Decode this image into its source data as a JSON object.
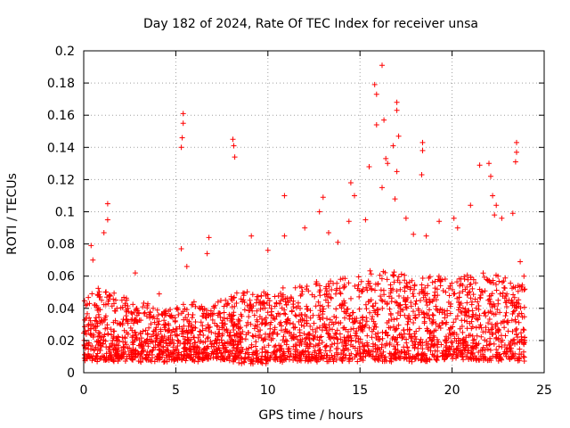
{
  "chart_data": {
    "type": "scatter",
    "title": "Day 182 of 2024, Rate Of TEC Index for receiver unsa",
    "xlabel": "GPS time / hours",
    "ylabel": "ROTI / TECUs",
    "xlim": [
      0,
      25
    ],
    "ylim": [
      0,
      0.2
    ],
    "xticks": [
      0,
      5,
      10,
      15,
      20,
      25
    ],
    "xtick_labels": [
      "0",
      "5",
      "10",
      "15",
      "20",
      "25"
    ],
    "yticks": [
      0,
      0.02,
      0.04,
      0.06,
      0.08,
      0.1,
      0.12,
      0.14,
      0.16,
      0.18,
      0.2
    ],
    "ytick_labels": [
      "0",
      "0.02",
      "0.04",
      "0.06",
      "0.08",
      "0.1",
      "0.12",
      "0.14",
      "0.16",
      "0.18",
      "0.2"
    ],
    "grid": true,
    "marker": "+",
    "color": "#ff0000",
    "series": [
      {
        "name": "ROTI",
        "envelope": {
          "description": "dense band of points, typical range",
          "x": [
            0,
            1,
            2,
            3,
            4,
            5,
            6,
            7,
            8,
            9,
            10,
            11,
            12,
            13,
            14,
            15,
            16,
            17,
            18,
            19,
            20,
            21,
            22,
            23,
            24
          ],
          "low": [
            0.008,
            0.008,
            0.008,
            0.008,
            0.008,
            0.008,
            0.008,
            0.008,
            0.008,
            0.006,
            0.007,
            0.008,
            0.008,
            0.008,
            0.008,
            0.008,
            0.008,
            0.008,
            0.008,
            0.008,
            0.01,
            0.008,
            0.008,
            0.008,
            0.008
          ],
          "high": [
            0.045,
            0.055,
            0.05,
            0.045,
            0.04,
            0.04,
            0.045,
            0.042,
            0.048,
            0.05,
            0.05,
            0.052,
            0.055,
            0.058,
            0.06,
            0.062,
            0.065,
            0.062,
            0.06,
            0.06,
            0.058,
            0.062,
            0.06,
            0.06,
            0.055
          ]
        },
        "outliers": [
          {
            "x": 0.4,
            "y": 0.079
          },
          {
            "x": 0.5,
            "y": 0.07
          },
          {
            "x": 1.1,
            "y": 0.087
          },
          {
            "x": 1.3,
            "y": 0.105
          },
          {
            "x": 1.3,
            "y": 0.095
          },
          {
            "x": 2.8,
            "y": 0.062
          },
          {
            "x": 4.1,
            "y": 0.049
          },
          {
            "x": 5.3,
            "y": 0.077
          },
          {
            "x": 5.4,
            "y": 0.161
          },
          {
            "x": 5.4,
            "y": 0.155
          },
          {
            "x": 5.35,
            "y": 0.146
          },
          {
            "x": 5.3,
            "y": 0.14
          },
          {
            "x": 5.6,
            "y": 0.066
          },
          {
            "x": 6.8,
            "y": 0.084
          },
          {
            "x": 6.7,
            "y": 0.074
          },
          {
            "x": 8.1,
            "y": 0.145
          },
          {
            "x": 8.15,
            "y": 0.141
          },
          {
            "x": 8.2,
            "y": 0.134
          },
          {
            "x": 9.1,
            "y": 0.085
          },
          {
            "x": 10.0,
            "y": 0.076
          },
          {
            "x": 10.9,
            "y": 0.11
          },
          {
            "x": 10.9,
            "y": 0.085
          },
          {
            "x": 12.0,
            "y": 0.09
          },
          {
            "x": 12.8,
            "y": 0.1
          },
          {
            "x": 13.0,
            "y": 0.109
          },
          {
            "x": 13.3,
            "y": 0.087
          },
          {
            "x": 13.8,
            "y": 0.081
          },
          {
            "x": 14.5,
            "y": 0.118
          },
          {
            "x": 14.7,
            "y": 0.11
          },
          {
            "x": 14.4,
            "y": 0.094
          },
          {
            "x": 15.3,
            "y": 0.095
          },
          {
            "x": 15.5,
            "y": 0.128
          },
          {
            "x": 15.8,
            "y": 0.179
          },
          {
            "x": 15.9,
            "y": 0.173
          },
          {
            "x": 15.9,
            "y": 0.154
          },
          {
            "x": 16.2,
            "y": 0.191
          },
          {
            "x": 16.3,
            "y": 0.157
          },
          {
            "x": 16.4,
            "y": 0.133
          },
          {
            "x": 16.2,
            "y": 0.115
          },
          {
            "x": 16.5,
            "y": 0.13
          },
          {
            "x": 16.8,
            "y": 0.141
          },
          {
            "x": 17.0,
            "y": 0.168
          },
          {
            "x": 17.0,
            "y": 0.163
          },
          {
            "x": 17.1,
            "y": 0.147
          },
          {
            "x": 17.0,
            "y": 0.125
          },
          {
            "x": 16.9,
            "y": 0.108
          },
          {
            "x": 17.5,
            "y": 0.096
          },
          {
            "x": 17.9,
            "y": 0.086
          },
          {
            "x": 18.4,
            "y": 0.143
          },
          {
            "x": 18.4,
            "y": 0.138
          },
          {
            "x": 18.35,
            "y": 0.123
          },
          {
            "x": 18.6,
            "y": 0.085
          },
          {
            "x": 19.3,
            "y": 0.094
          },
          {
            "x": 20.1,
            "y": 0.096
          },
          {
            "x": 20.3,
            "y": 0.09
          },
          {
            "x": 21.0,
            "y": 0.104
          },
          {
            "x": 21.5,
            "y": 0.129
          },
          {
            "x": 22.0,
            "y": 0.13
          },
          {
            "x": 22.1,
            "y": 0.122
          },
          {
            "x": 22.2,
            "y": 0.11
          },
          {
            "x": 22.4,
            "y": 0.104
          },
          {
            "x": 22.3,
            "y": 0.098
          },
          {
            "x": 22.7,
            "y": 0.096
          },
          {
            "x": 23.3,
            "y": 0.099
          },
          {
            "x": 23.5,
            "y": 0.143
          },
          {
            "x": 23.5,
            "y": 0.137
          },
          {
            "x": 23.45,
            "y": 0.131
          },
          {
            "x": 23.7,
            "y": 0.069
          },
          {
            "x": 23.9,
            "y": 0.06
          }
        ]
      }
    ]
  }
}
